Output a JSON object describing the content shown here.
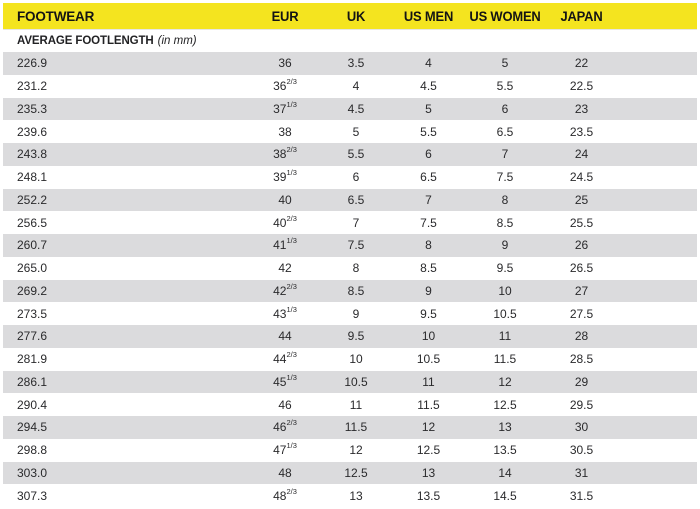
{
  "colors": {
    "header_bg": "#F4E41F",
    "row_alt_bg": "#DBDBDD",
    "row_bg": "#FFFFFF",
    "header_text": "#141414",
    "body_text": "#2A2A2C"
  },
  "header": {
    "columns": [
      "FOOTWEAR",
      "EUR",
      "UK",
      "US MEN",
      "US WOMEN",
      "JAPAN"
    ]
  },
  "subheader": {
    "label": "AVERAGE FOOTLENGTH",
    "unit": "(in mm)"
  },
  "chart_data": {
    "type": "table",
    "title": "FOOTWEAR",
    "subtitle": "AVERAGE FOOTLENGTH (in mm)",
    "columns": [
      "FOOTWEAR (avg footlength in mm)",
      "EUR",
      "UK",
      "US MEN",
      "US WOMEN",
      "JAPAN"
    ],
    "rows": [
      {
        "mm": "226.9",
        "eur": "36",
        "eur_frac": "",
        "uk": "3.5",
        "us_men": "4",
        "us_women": "5",
        "japan": "22"
      },
      {
        "mm": "231.2",
        "eur": "36",
        "eur_frac": "2/3",
        "uk": "4",
        "us_men": "4.5",
        "us_women": "5.5",
        "japan": "22.5"
      },
      {
        "mm": "235.3",
        "eur": "37",
        "eur_frac": "1/3",
        "uk": "4.5",
        "us_men": "5",
        "us_women": "6",
        "japan": "23"
      },
      {
        "mm": "239.6",
        "eur": "38",
        "eur_frac": "",
        "uk": "5",
        "us_men": "5.5",
        "us_women": "6.5",
        "japan": "23.5"
      },
      {
        "mm": "243.8",
        "eur": "38",
        "eur_frac": "2/3",
        "uk": "5.5",
        "us_men": "6",
        "us_women": "7",
        "japan": "24"
      },
      {
        "mm": "248.1",
        "eur": "39",
        "eur_frac": "1/3",
        "uk": "6",
        "us_men": "6.5",
        "us_women": "7.5",
        "japan": "24.5"
      },
      {
        "mm": "252.2",
        "eur": "40",
        "eur_frac": "",
        "uk": "6.5",
        "us_men": "7",
        "us_women": "8",
        "japan": "25"
      },
      {
        "mm": "256.5",
        "eur": "40",
        "eur_frac": "2/3",
        "uk": "7",
        "us_men": "7.5",
        "us_women": "8.5",
        "japan": "25.5"
      },
      {
        "mm": "260.7",
        "eur": "41",
        "eur_frac": "1/3",
        "uk": "7.5",
        "us_men": "8",
        "us_women": "9",
        "japan": "26"
      },
      {
        "mm": "265.0",
        "eur": "42",
        "eur_frac": "",
        "uk": "8",
        "us_men": "8.5",
        "us_women": "9.5",
        "japan": "26.5"
      },
      {
        "mm": "269.2",
        "eur": "42",
        "eur_frac": "2/3",
        "uk": "8.5",
        "us_men": "9",
        "us_women": "10",
        "japan": "27"
      },
      {
        "mm": "273.5",
        "eur": "43",
        "eur_frac": "1/3",
        "uk": "9",
        "us_men": "9.5",
        "us_women": "10.5",
        "japan": "27.5"
      },
      {
        "mm": "277.6",
        "eur": "44",
        "eur_frac": "",
        "uk": "9.5",
        "us_men": "10",
        "us_women": "11",
        "japan": "28"
      },
      {
        "mm": "281.9",
        "eur": "44",
        "eur_frac": "2/3",
        "uk": "10",
        "us_men": "10.5",
        "us_women": "11.5",
        "japan": "28.5"
      },
      {
        "mm": "286.1",
        "eur": "45",
        "eur_frac": "1/3",
        "uk": "10.5",
        "us_men": "11",
        "us_women": "12",
        "japan": "29"
      },
      {
        "mm": "290.4",
        "eur": "46",
        "eur_frac": "",
        "uk": "11",
        "us_men": "11.5",
        "us_women": "12.5",
        "japan": "29.5"
      },
      {
        "mm": "294.5",
        "eur": "46",
        "eur_frac": "2/3",
        "uk": "11.5",
        "us_men": "12",
        "us_women": "13",
        "japan": "30"
      },
      {
        "mm": "298.8",
        "eur": "47",
        "eur_frac": "1/3",
        "uk": "12",
        "us_men": "12.5",
        "us_women": "13.5",
        "japan": "30.5"
      },
      {
        "mm": "303.0",
        "eur": "48",
        "eur_frac": "",
        "uk": "12.5",
        "us_men": "13",
        "us_women": "14",
        "japan": "31"
      },
      {
        "mm": "307.3",
        "eur": "48",
        "eur_frac": "2/3",
        "uk": "13",
        "us_men": "13.5",
        "us_women": "14.5",
        "japan": "31.5"
      }
    ]
  }
}
